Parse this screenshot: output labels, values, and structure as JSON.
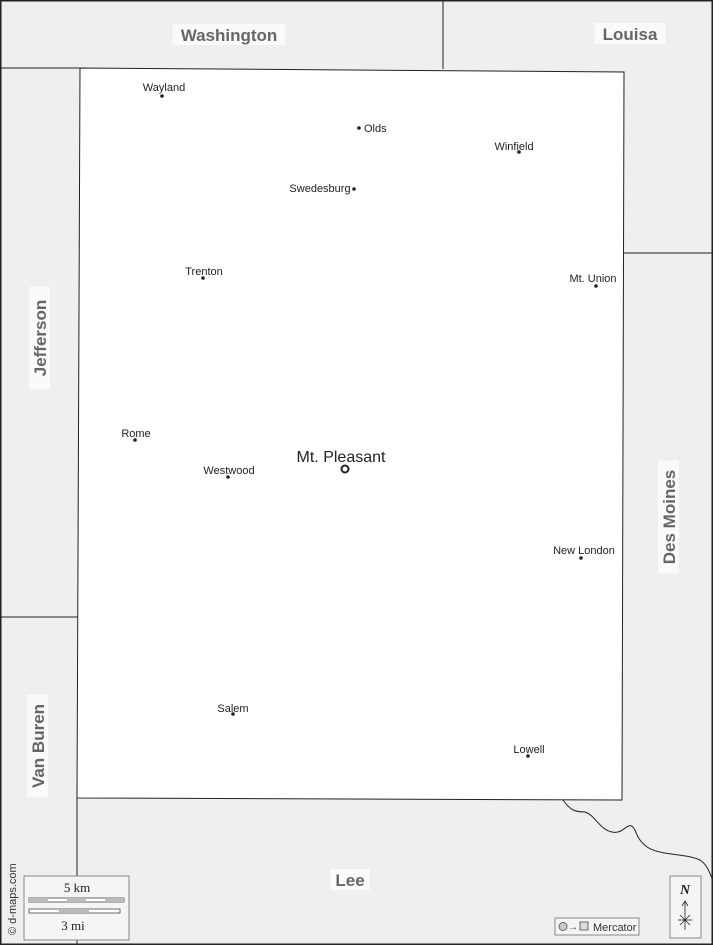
{
  "map": {
    "colors": {
      "background": "#efefef",
      "county": "#ffffff",
      "border": "#222222",
      "label": "#666666"
    },
    "county_seat": "Mt. Pleasant",
    "cities": [
      "Wayland",
      "Olds",
      "Winfield",
      "Swedesburg",
      "Trenton",
      "Mt. Union",
      "Rome",
      "Westwood",
      "New London",
      "Salem",
      "Lowell"
    ],
    "neighbors": [
      "Washington",
      "Louisa",
      "Jefferson",
      "Van Buren",
      "Des Moines",
      "Lee"
    ],
    "credit": "© d-maps.com",
    "scale": {
      "km": "5 km",
      "mi": "3 mi"
    },
    "compass": {
      "north": "N"
    },
    "projection": "Mercator"
  }
}
